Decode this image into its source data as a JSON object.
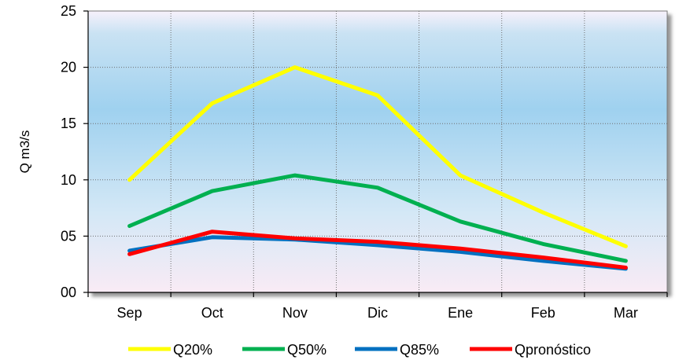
{
  "chart_data": {
    "type": "line",
    "categories": [
      "Sep",
      "Oct",
      "Nov",
      "Dic",
      "Ene",
      "Feb",
      "Mar"
    ],
    "ylabel": "Q m3/s",
    "ylim": [
      0,
      25
    ],
    "yticks": [
      "00",
      "05",
      "10",
      "15",
      "20",
      "25"
    ],
    "grid": true,
    "legend_position": "bottom",
    "series": [
      {
        "name": "Q20%",
        "color": "#ffff00",
        "values": [
          10.0,
          16.8,
          20.0,
          17.5,
          10.4,
          7.1,
          4.1
        ]
      },
      {
        "name": "Q50%",
        "color": "#00b050",
        "values": [
          5.9,
          9.0,
          10.4,
          9.3,
          6.3,
          4.3,
          2.8
        ]
      },
      {
        "name": "Q85%",
        "color": "#0070c0",
        "values": [
          3.7,
          4.9,
          4.7,
          4.2,
          3.6,
          2.8,
          2.1
        ]
      },
      {
        "name": "Qpronóstico",
        "color": "#ff0000",
        "values": [
          3.4,
          5.4,
          4.8,
          4.5,
          3.9,
          3.1,
          2.2
        ]
      }
    ]
  }
}
